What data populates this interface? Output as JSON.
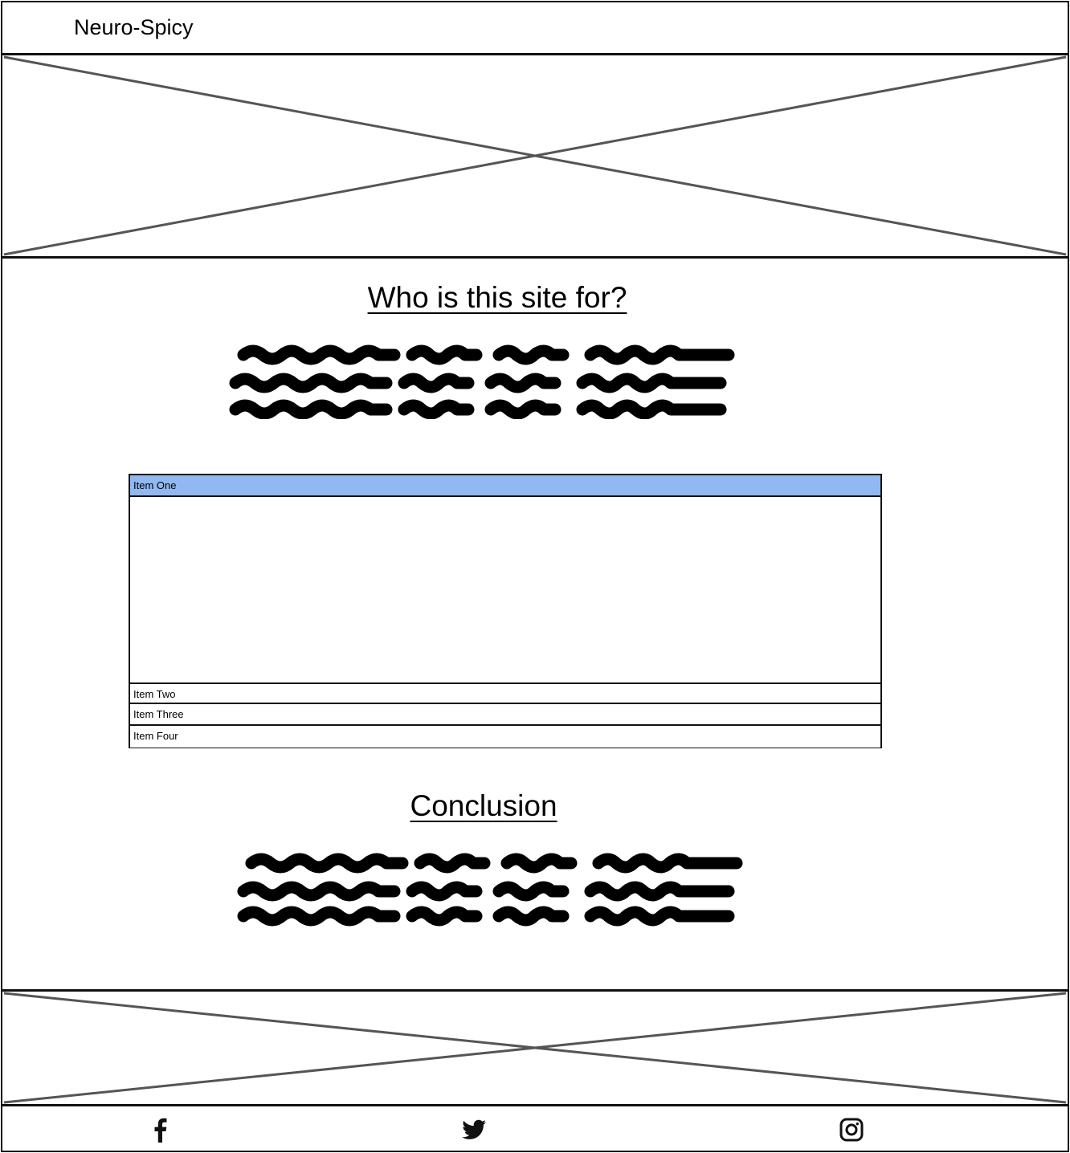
{
  "header": {
    "site_title": "Neuro-Spicy"
  },
  "sections": {
    "who_heading": "Who is this site for?",
    "conclusion_heading": "Conclusion"
  },
  "accordion": {
    "items": [
      {
        "label": "Item One",
        "expanded": true
      },
      {
        "label": "Item Two",
        "expanded": false
      },
      {
        "label": "Item Three",
        "expanded": false
      },
      {
        "label": "Item Four",
        "expanded": false
      }
    ],
    "active_color": "#91b8f0"
  },
  "footer": {
    "social_icons": [
      "facebook-icon",
      "twitter-icon",
      "instagram-icon"
    ]
  }
}
